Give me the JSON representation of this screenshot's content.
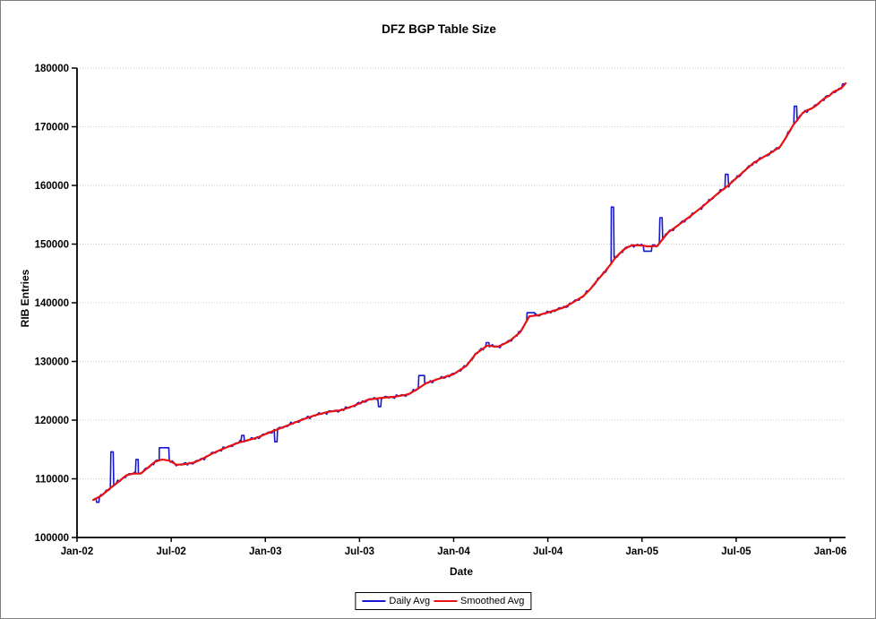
{
  "chart_data": {
    "type": "line",
    "title": "DFZ BGP Table Size",
    "xlabel": "Date",
    "ylabel": "RIB Entries",
    "x_tick_labels": [
      "Jan-02",
      "Jul-02",
      "Jan-03",
      "Jul-03",
      "Jan-04",
      "Jul-04",
      "Jan-05",
      "Jul-05",
      "Jan-06"
    ],
    "y_ticks": [
      100000,
      110000,
      120000,
      130000,
      140000,
      150000,
      160000,
      170000,
      180000
    ],
    "ylim": [
      100000,
      180000
    ],
    "xlim_years_since_2002": [
      0,
      4.081
    ],
    "grid": "horizontal-dotted",
    "legend_position": "bottom-center",
    "axis_color": "#000000",
    "grid_color": "#c9c9c9",
    "series": [
      {
        "name": "Daily Avg",
        "color": "#1717d2",
        "derivation": "smoothed baseline plus jitter plus spike anomalies",
        "spikes_t_value_width": [
          [
            0.11,
            106000,
            0.012
          ],
          [
            0.186,
            114600,
            0.012
          ],
          [
            0.319,
            113300,
            0.012
          ],
          [
            0.462,
            115300,
            0.05
          ],
          [
            0.88,
            117400,
            0.012
          ],
          [
            1.056,
            116300,
            0.012
          ],
          [
            1.607,
            122300,
            0.012
          ],
          [
            1.83,
            127600,
            0.03
          ],
          [
            2.18,
            133200,
            0.014
          ],
          [
            2.41,
            138300,
            0.04
          ],
          [
            2.843,
            156300,
            0.012
          ],
          [
            3.03,
            148800,
            0.04
          ],
          [
            3.101,
            154500,
            0.012
          ],
          [
            3.45,
            161900,
            0.014
          ],
          [
            3.815,
            173500,
            0.012
          ],
          [
            4.07,
            177300,
            0.01
          ]
        ]
      },
      {
        "name": "Smoothed Avg",
        "color": "#e81212",
        "points_t_value": [
          [
            0.086,
            106400
          ],
          [
            0.128,
            107100
          ],
          [
            0.176,
            108400
          ],
          [
            0.224,
            109600
          ],
          [
            0.262,
            110600
          ],
          [
            0.3,
            110900
          ],
          [
            0.338,
            110900
          ],
          [
            0.376,
            111900
          ],
          [
            0.414,
            112900
          ],
          [
            0.452,
            113300
          ],
          [
            0.49,
            113100
          ],
          [
            0.528,
            112400
          ],
          [
            0.576,
            112500
          ],
          [
            0.623,
            112800
          ],
          [
            0.671,
            113500
          ],
          [
            0.718,
            114300
          ],
          [
            0.766,
            115000
          ],
          [
            0.813,
            115600
          ],
          [
            0.861,
            116200
          ],
          [
            0.908,
            116600
          ],
          [
            0.956,
            117000
          ],
          [
            0.999,
            117600
          ],
          [
            1.046,
            118200
          ],
          [
            1.118,
            119100
          ],
          [
            1.189,
            120000
          ],
          [
            1.26,
            120800
          ],
          [
            1.332,
            121400
          ],
          [
            1.403,
            121700
          ],
          [
            1.474,
            122500
          ],
          [
            1.546,
            123500
          ],
          [
            1.617,
            123800
          ],
          [
            1.688,
            124000
          ],
          [
            1.76,
            124400
          ],
          [
            1.807,
            125300
          ],
          [
            1.855,
            126300
          ],
          [
            1.926,
            127100
          ],
          [
            1.998,
            127800
          ],
          [
            2.069,
            129300
          ],
          [
            2.117,
            131300
          ],
          [
            2.178,
            132700
          ],
          [
            2.235,
            132500
          ],
          [
            2.293,
            133400
          ],
          [
            2.354,
            135000
          ],
          [
            2.402,
            137700
          ],
          [
            2.449,
            137900
          ],
          [
            2.497,
            138300
          ],
          [
            2.545,
            138800
          ],
          [
            2.592,
            139300
          ],
          [
            2.64,
            140200
          ],
          [
            2.687,
            141100
          ],
          [
            2.725,
            142300
          ],
          [
            2.759,
            143700
          ],
          [
            2.792,
            144900
          ],
          [
            2.83,
            146400
          ],
          [
            2.854,
            147500
          ],
          [
            2.878,
            148300
          ],
          [
            2.901,
            149000
          ],
          [
            2.925,
            149500
          ],
          [
            2.949,
            149800
          ],
          [
            2.987,
            149800
          ],
          [
            3.035,
            149600
          ],
          [
            3.082,
            149700
          ],
          [
            3.101,
            150500
          ],
          [
            3.139,
            152000
          ],
          [
            3.187,
            153100
          ],
          [
            3.258,
            154800
          ],
          [
            3.329,
            156600
          ],
          [
            3.401,
            158600
          ],
          [
            3.458,
            160000
          ],
          [
            3.52,
            161800
          ],
          [
            3.591,
            163800
          ],
          [
            3.638,
            164700
          ],
          [
            3.686,
            165600
          ],
          [
            3.733,
            166600
          ],
          [
            3.767,
            168300
          ],
          [
            3.805,
            170400
          ],
          [
            3.829,
            171300
          ],
          [
            3.852,
            172300
          ],
          [
            3.876,
            172800
          ],
          [
            3.9,
            173100
          ],
          [
            3.924,
            173600
          ],
          [
            3.948,
            174300
          ],
          [
            3.971,
            174900
          ],
          [
            3.995,
            175300
          ],
          [
            4.019,
            176000
          ],
          [
            4.043,
            176300
          ],
          [
            4.062,
            176700
          ],
          [
            4.081,
            177400
          ]
        ]
      }
    ]
  }
}
